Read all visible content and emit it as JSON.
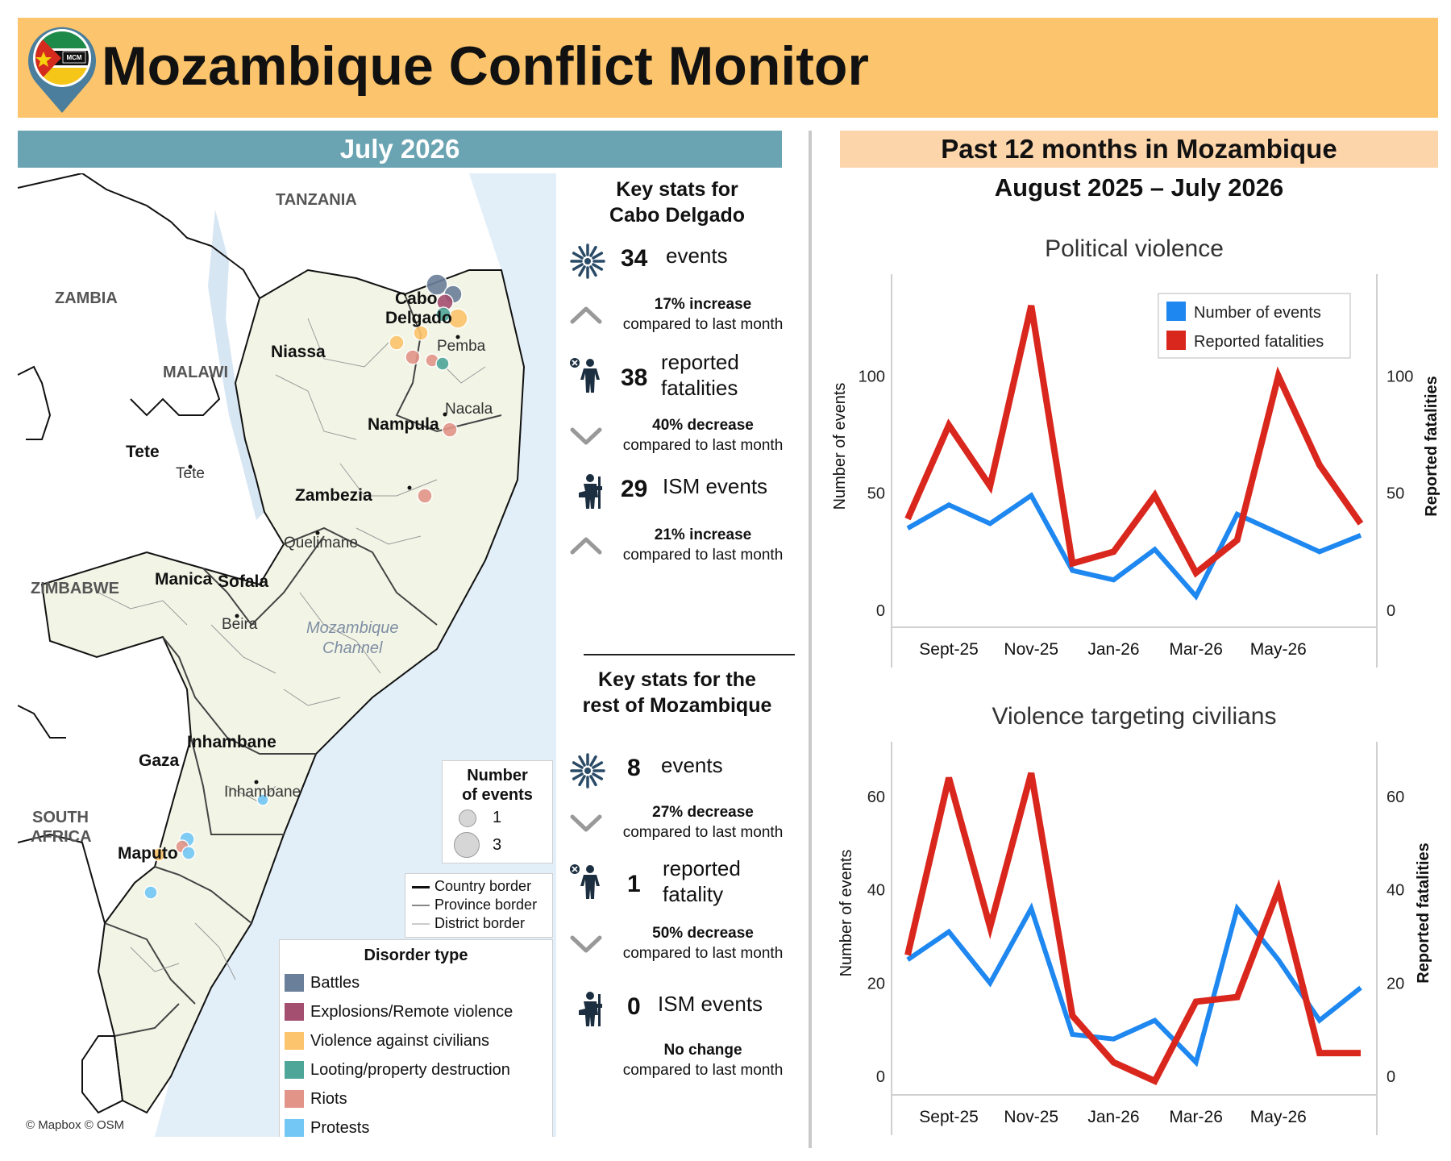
{
  "header": {
    "title": "Mozambique Conflict Monitor",
    "logo_text": "MCM"
  },
  "left_panel": {
    "month": "July 2026",
    "map": {
      "countries": [
        "TANZANIA",
        "ZAMBIA",
        "MALAWI",
        "ZIMBABWE",
        "SOUTH",
        "AFRICA"
      ],
      "provinces": [
        "Cabo",
        "Delgado",
        "Niassa",
        "Nampula",
        "Tete",
        "Zambezia",
        "Manica",
        "Sofala",
        "Inhambane",
        "Gaza",
        "Maputo"
      ],
      "cities": [
        "Pemba",
        "Nacala",
        "Tete",
        "Quelimane",
        "Beira",
        "Inhambane"
      ],
      "sea": [
        "Mozambique",
        "Channel"
      ],
      "attribution": "© Mapbox © OSM"
    },
    "size_legend": {
      "title": [
        "Number",
        "of events"
      ],
      "items": [
        "1",
        "3"
      ]
    },
    "border_legend": [
      "Country border",
      "Province border",
      "District border"
    ],
    "type_legend": {
      "title": "Disorder type",
      "items": [
        {
          "label": "Battles",
          "color": "#6a7f99"
        },
        {
          "label": "Explosions/Remote violence",
          "color": "#a54f70"
        },
        {
          "label": "Violence against civilians",
          "color": "#fcc46c"
        },
        {
          "label": "Looting/property destruction",
          "color": "#4ea699"
        },
        {
          "label": "Riots",
          "color": "#e39488"
        },
        {
          "label": "Protests",
          "color": "#72c7f5"
        }
      ]
    }
  },
  "stats": {
    "cabo": {
      "title": [
        "Key stats for",
        "Cabo Delgado"
      ],
      "events": {
        "value": "34",
        "label": "events",
        "change": "17% increase",
        "sub": "compared to last month",
        "direction": "up"
      },
      "fatalities": {
        "value": "38",
        "label": [
          "reported",
          "fatalities"
        ],
        "change": "40% decrease",
        "sub": "compared to last month",
        "direction": "down"
      },
      "ism": {
        "value": "29",
        "label": "ISM events",
        "change": "21% increase",
        "sub": "compared to last month",
        "direction": "up"
      }
    },
    "rest": {
      "title": [
        "Key stats for the",
        "rest of Mozambique"
      ],
      "events": {
        "value": "8",
        "label": "events",
        "change": "27% decrease",
        "sub": "compared to last month",
        "direction": "down"
      },
      "fatalities": {
        "value": "1",
        "label": [
          "reported",
          "fatality"
        ],
        "change": "50% decrease",
        "sub": "compared to last month",
        "direction": "down"
      },
      "ism": {
        "value": "0",
        "label": "ISM events",
        "change": "No change",
        "sub": "compared to last month",
        "direction": "none"
      }
    }
  },
  "right_panel": {
    "banner": "Past 12 months in Mozambique",
    "period": "August 2025 – July 2026"
  },
  "chart_data": [
    {
      "type": "line",
      "title": "Political violence",
      "x": [
        "Aug-25",
        "Sept-25",
        "Oct-25",
        "Nov-25",
        "Dec-25",
        "Jan-26",
        "Feb-26",
        "Mar-26",
        "Apr-26",
        "May-26",
        "Jun-26",
        "Jul-26"
      ],
      "x_tick_labels": [
        "Sept-25",
        "Nov-25",
        "Jan-26",
        "Mar-26",
        "May-26"
      ],
      "ylabel": "Number of events",
      "y2label": "Reported fatalities",
      "ylim": [
        0,
        140
      ],
      "yticks": [
        0,
        50,
        100
      ],
      "y2ticks": [
        0,
        50,
        100
      ],
      "legend_position": "top-right",
      "grid": false,
      "series": [
        {
          "name": "Number of events",
          "axis": "left",
          "color": "#1e87f0",
          "values": [
            35,
            45,
            37,
            49,
            17,
            13,
            26,
            6,
            41,
            33,
            25,
            32
          ]
        },
        {
          "name": "Reported fatalities",
          "axis": "right",
          "color": "#d9271e",
          "values": [
            39,
            79,
            53,
            130,
            20,
            25,
            49,
            16,
            30,
            100,
            62,
            37
          ]
        }
      ]
    },
    {
      "type": "line",
      "title": "Violence targeting civilians",
      "x": [
        "Aug-25",
        "Sept-25",
        "Oct-25",
        "Nov-25",
        "Dec-25",
        "Jan-26",
        "Feb-26",
        "Mar-26",
        "Apr-26",
        "May-26",
        "Jun-26",
        "Jul-26"
      ],
      "x_tick_labels": [
        "Sept-25",
        "Nov-25",
        "Jan-26",
        "Mar-26",
        "May-26"
      ],
      "ylabel": "Number of events",
      "y2label": "Reported fatalities",
      "ylim": [
        0,
        70
      ],
      "yticks": [
        0,
        20,
        40,
        60
      ],
      "y2ticks": [
        0,
        20,
        40,
        60
      ],
      "grid": false,
      "series": [
        {
          "name": "Number of events",
          "axis": "left",
          "color": "#1e87f0",
          "values": [
            25,
            31,
            20,
            36,
            9,
            8,
            12,
            3,
            36,
            25,
            12,
            19
          ]
        },
        {
          "name": "Reported fatalities",
          "axis": "right",
          "color": "#d9271e",
          "values": [
            26,
            64,
            32,
            65,
            13,
            3,
            -1,
            16,
            17,
            40,
            5,
            5
          ]
        }
      ]
    }
  ]
}
